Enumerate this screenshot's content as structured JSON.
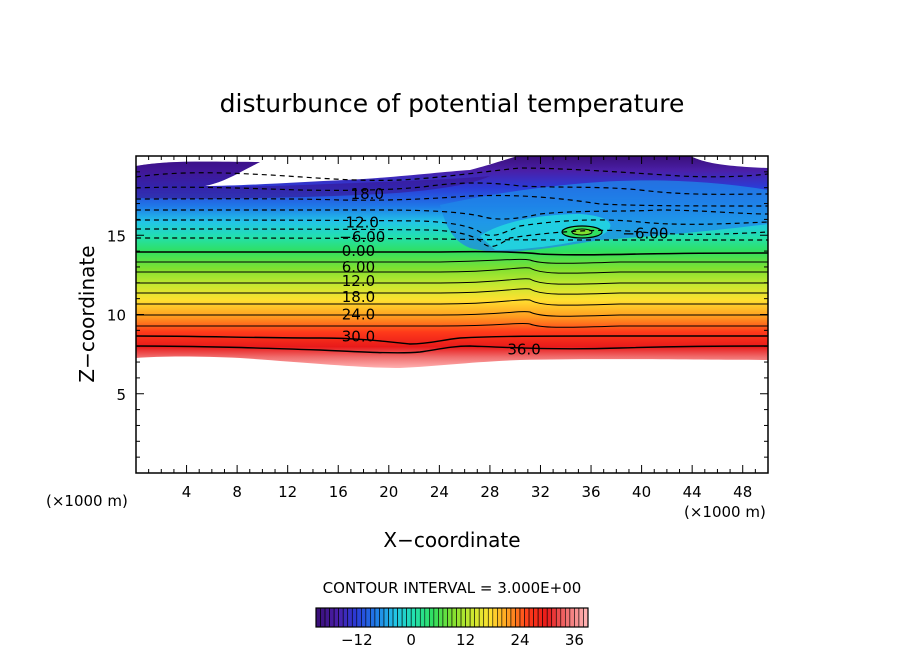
{
  "chart_data": {
    "type": "heatmap",
    "title": "disturbunce of potential temperature",
    "xlabel": "X−coordinate",
    "ylabel": "Z−coordinate",
    "x_unit": "(×1000 m)",
    "z_unit": "(×1000 m)",
    "xlim": [
      0,
      50
    ],
    "ylim": [
      0,
      20
    ],
    "x_ticks": [
      4,
      8,
      12,
      16,
      20,
      24,
      28,
      32,
      36,
      40,
      44,
      48
    ],
    "y_ticks": [
      5,
      10,
      15
    ],
    "contour_interval_text": "CONTOUR INTERVAL = 3.000E+00",
    "contour_interval": 3.0,
    "colorbar": {
      "range": [
        -21,
        39
      ],
      "ticks": [
        "−12",
        "0",
        "12",
        "24",
        "36"
      ],
      "tick_values": [
        -12,
        0,
        12,
        24,
        36
      ],
      "colors": [
        "#3a0f7a",
        "#4a1fa8",
        "#2a3cd8",
        "#1f7be8",
        "#22c4e8",
        "#22e0b0",
        "#30e060",
        "#7ee030",
        "#c8e830",
        "#ffe030",
        "#ff9a20",
        "#ff3a1a",
        "#e81a1a",
        "#f07070",
        "#ffb0b0"
      ]
    },
    "contour_labels": [
      {
        "text": "18.0",
        "x": 18.3,
        "z": 17.6
      },
      {
        "text": "12.0",
        "x": 17.9,
        "z": 15.8
      },
      {
        "text": "−6.00",
        "x": 17.9,
        "z": 14.9
      },
      {
        "text": "0.00",
        "x": 17.6,
        "z": 14.0
      },
      {
        "text": "6.00",
        "x": 17.6,
        "z": 13.0
      },
      {
        "text": "12.0",
        "x": 17.6,
        "z": 12.1
      },
      {
        "text": "18.0",
        "x": 17.6,
        "z": 11.1
      },
      {
        "text": "24.0",
        "x": 17.6,
        "z": 10.0
      },
      {
        "text": "30.0",
        "x": 17.6,
        "z": 8.6
      },
      {
        "text": "36.0",
        "x": 30.7,
        "z": 7.8
      },
      {
        "text": "−6.00",
        "x": 40.3,
        "z": 15.1
      }
    ]
  }
}
